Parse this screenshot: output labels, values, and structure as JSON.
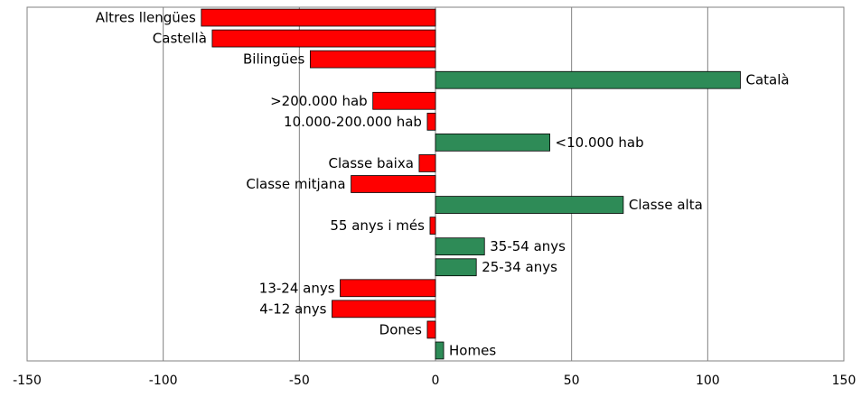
{
  "chart_data": {
    "type": "bar",
    "orientation": "horizontal",
    "categories": [
      "Altres llengües",
      "Castellà",
      "Bilingües",
      "Català",
      ">200.000 hab",
      "10.000-200.000 hab",
      "<10.000 hab",
      "Classe baixa",
      "Classe mitjana",
      "Classe alta",
      "55 anys i més",
      "35-54 anys",
      "25-34 anys",
      "13-24 anys",
      "4-12 anys",
      "Dones",
      "Homes"
    ],
    "values": [
      -86,
      -82,
      -46,
      112,
      -23,
      -3,
      42,
      -6,
      -31,
      69,
      -2,
      18,
      15,
      -35,
      -38,
      -3,
      3
    ],
    "xlim": [
      -150,
      150
    ],
    "xticks": [
      -150,
      -100,
      -50,
      0,
      50,
      100,
      150
    ],
    "grid": true,
    "colors": {
      "positive": "#2e8b57",
      "negative": "#ff0000",
      "grid": "#808080",
      "border": "#000000"
    }
  }
}
